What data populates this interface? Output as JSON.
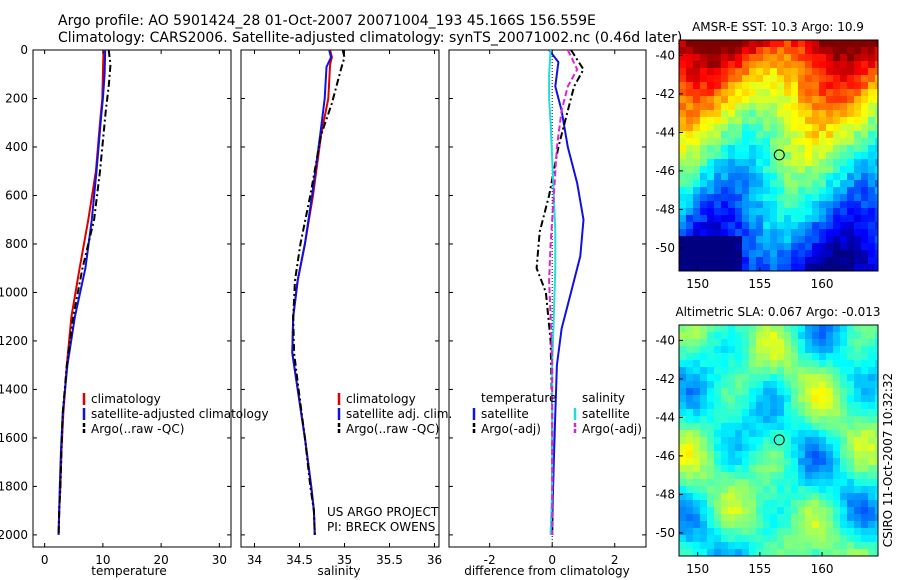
{
  "header": {
    "line1": "Argo profile: AO 5901424_28 01-Oct-2007 20071004_193 45.166S 156.559E",
    "line2": "Climatology: CARS2006. Satellite-adjusted climatology: synTS_20071002.nc (0.46d later)"
  },
  "side_text": "CSIRO 11-Oct-2007 10:32:32",
  "project": {
    "line1": "US ARGO PROJECT",
    "line2": "PI: BRECK OWENS"
  },
  "colors": {
    "climatology": "#dd0000",
    "satellite": "#1010e0",
    "argo": "#000000",
    "sat_salinity": "#22dddd",
    "argo_salinity": "#dd22dd"
  },
  "chart_data": [
    {
      "type": "line",
      "panel": "temperature",
      "xlabel": "temperature",
      "ylabel": "",
      "xlim": [
        -2,
        32
      ],
      "ylim": [
        2050,
        0
      ],
      "xticks": [
        0,
        10,
        20,
        30
      ],
      "yticks": [
        0,
        200,
        400,
        600,
        800,
        1000,
        1200,
        1400,
        1600,
        1800,
        2000
      ],
      "legend": [
        "climatology",
        "satellite-adjusted climatology",
        "Argo(..raw -QC)"
      ],
      "series": [
        {
          "name": "climatology",
          "color_key": "climatology",
          "style": "solid",
          "x": [
            10.1,
            10.0,
            9.9,
            9.5,
            8.8,
            7.5,
            6.0,
            4.6,
            3.8,
            3.2,
            2.9,
            2.7,
            2.5,
            2.4
          ],
          "y": [
            0,
            100,
            200,
            300,
            500,
            700,
            900,
            1100,
            1300,
            1500,
            1650,
            1800,
            1900,
            2000
          ]
        },
        {
          "name": "satellite-adjusted climatology",
          "color_key": "satellite",
          "style": "solid",
          "x": [
            10.4,
            10.3,
            10.0,
            9.6,
            8.9,
            8.1,
            7.0,
            5.2,
            3.9,
            3.1,
            2.8,
            2.6,
            2.5,
            2.4
          ],
          "y": [
            0,
            100,
            200,
            300,
            500,
            700,
            900,
            1100,
            1300,
            1500,
            1650,
            1800,
            1900,
            2000
          ]
        },
        {
          "name": "Argo(..raw -QC)",
          "color_key": "argo",
          "style": "dashdot",
          "x": [
            11.0,
            11.3,
            11.0,
            10.5,
            9.5,
            8.5,
            6.5,
            4.9,
            3.8,
            3.1,
            2.9,
            2.7,
            2.5,
            2.4
          ],
          "y": [
            0,
            60,
            150,
            250,
            500,
            700,
            900,
            1100,
            1300,
            1500,
            1650,
            1800,
            1900,
            2000
          ]
        }
      ]
    },
    {
      "type": "line",
      "panel": "salinity",
      "xlabel": "salinity",
      "ylabel": "",
      "xlim": [
        33.85,
        36.05
      ],
      "ylim": [
        2050,
        0
      ],
      "xticks": [
        34,
        34.5,
        35,
        35.5,
        36
      ],
      "legend": [
        "climatology",
        "satellite adj. clim.",
        "Argo(..raw -QC)"
      ],
      "series": [
        {
          "name": "climatology",
          "color_key": "climatology",
          "style": "solid",
          "x": [
            34.84,
            34.86,
            34.84,
            34.82,
            34.74,
            34.65,
            34.56,
            34.48,
            34.43,
            34.42,
            34.48,
            34.56,
            34.63,
            34.66,
            34.67
          ],
          "y": [
            0,
            30,
            60,
            200,
            350,
            600,
            800,
            950,
            1100,
            1250,
            1400,
            1600,
            1800,
            1900,
            2000
          ]
        },
        {
          "name": "satellite adj. clim.",
          "color_key": "satellite",
          "style": "solid",
          "x": [
            34.83,
            34.85,
            34.8,
            34.78,
            34.73,
            34.64,
            34.56,
            34.48,
            34.43,
            34.42,
            34.48,
            34.56,
            34.63,
            34.66,
            34.67
          ],
          "y": [
            0,
            30,
            70,
            200,
            350,
            600,
            800,
            950,
            1100,
            1250,
            1400,
            1600,
            1800,
            1900,
            2000
          ]
        },
        {
          "name": "Argo(..raw -QC)",
          "color_key": "argo",
          "style": "dashdot",
          "x": [
            34.98,
            35.0,
            34.96,
            34.86,
            34.74,
            34.62,
            34.51,
            34.45,
            34.43,
            34.44,
            34.49,
            34.56,
            34.62,
            34.66,
            34.67
          ],
          "y": [
            0,
            30,
            80,
            220,
            350,
            600,
            800,
            950,
            1100,
            1250,
            1400,
            1600,
            1800,
            1900,
            2000
          ]
        }
      ]
    },
    {
      "type": "line",
      "panel": "difference",
      "xlabel": "difference from climatology",
      "ylabel": "",
      "xlim": [
        -3.3,
        3.0
      ],
      "ylim": [
        2050,
        0
      ],
      "xticks": [
        -2,
        0,
        2
      ],
      "legend_groups": [
        {
          "title": "temperature",
          "items": [
            "satellite",
            "Argo(-adj)"
          ]
        },
        {
          "title": "salinity",
          "items": [
            "satellite",
            "Argo(-adj)"
          ]
        }
      ],
      "series": [
        {
          "name": "satellite",
          "group": "temperature",
          "color_key": "satellite",
          "style": "solid",
          "x": [
            -0.1,
            0.2,
            0.1,
            0.3,
            0.5,
            0.8,
            1.0,
            0.9,
            0.6,
            0.3,
            0.15,
            0.1,
            0.05,
            0.02,
            0.0
          ],
          "y": [
            0,
            50,
            150,
            250,
            400,
            550,
            700,
            850,
            1000,
            1150,
            1300,
            1500,
            1700,
            1850,
            2000
          ]
        },
        {
          "name": "Argo(-adj)",
          "group": "temperature",
          "color_key": "argo",
          "style": "dashdot",
          "x": [
            0.6,
            1.0,
            0.7,
            0.5,
            0.2,
            -0.1,
            -0.4,
            -0.5,
            -0.2,
            -0.05,
            0.0,
            0.0,
            0.0
          ],
          "y": [
            0,
            80,
            150,
            250,
            400,
            600,
            750,
            900,
            1000,
            1200,
            1500,
            1800,
            2000
          ]
        },
        {
          "name": "satellite",
          "group": "salinity",
          "color_key": "sat_salinity",
          "style": "solid",
          "x": [
            -0.05,
            -0.1,
            -0.1,
            -0.05,
            0.0,
            0.05,
            0.1,
            0.1,
            0.05,
            0.0,
            0.0,
            0.0,
            -0.05
          ],
          "y": [
            0,
            100,
            200,
            300,
            450,
            600,
            750,
            900,
            1100,
            1300,
            1500,
            1800,
            2000
          ]
        },
        {
          "name": "Argo(-adj)",
          "group": "salinity",
          "color_key": "argo_salinity",
          "style": "dashed",
          "x": [
            0.5,
            0.8,
            0.5,
            0.3,
            0.15,
            0.05,
            -0.05,
            -0.1,
            -0.05,
            0.0,
            0.0,
            0.0
          ],
          "y": [
            0,
            80,
            150,
            250,
            400,
            600,
            800,
            950,
            1100,
            1300,
            1600,
            2000
          ]
        }
      ]
    },
    {
      "type": "heatmap",
      "panel": "sst_map",
      "title": "AMSR-E SST: 10.3 Argo: 10.9",
      "xlim": [
        148.5,
        164.5
      ],
      "ylim": [
        -51.2,
        -39.2
      ],
      "xticks": [
        150,
        155,
        160
      ],
      "yticks": [
        -40,
        -42,
        -44,
        -46,
        -48,
        -50
      ],
      "marker": {
        "lon": 156.56,
        "lat": -45.17
      }
    },
    {
      "type": "heatmap",
      "panel": "sla_map",
      "title": "Altimetric SLA: 0.067 Argo: -0.013",
      "xlim": [
        148.5,
        164.5
      ],
      "ylim": [
        -51.2,
        -39.2
      ],
      "xticks": [
        150,
        155,
        160
      ],
      "yticks": [
        -40,
        -42,
        -44,
        -46,
        -48,
        -50
      ],
      "marker": {
        "lon": 156.56,
        "lat": -45.17
      }
    }
  ]
}
